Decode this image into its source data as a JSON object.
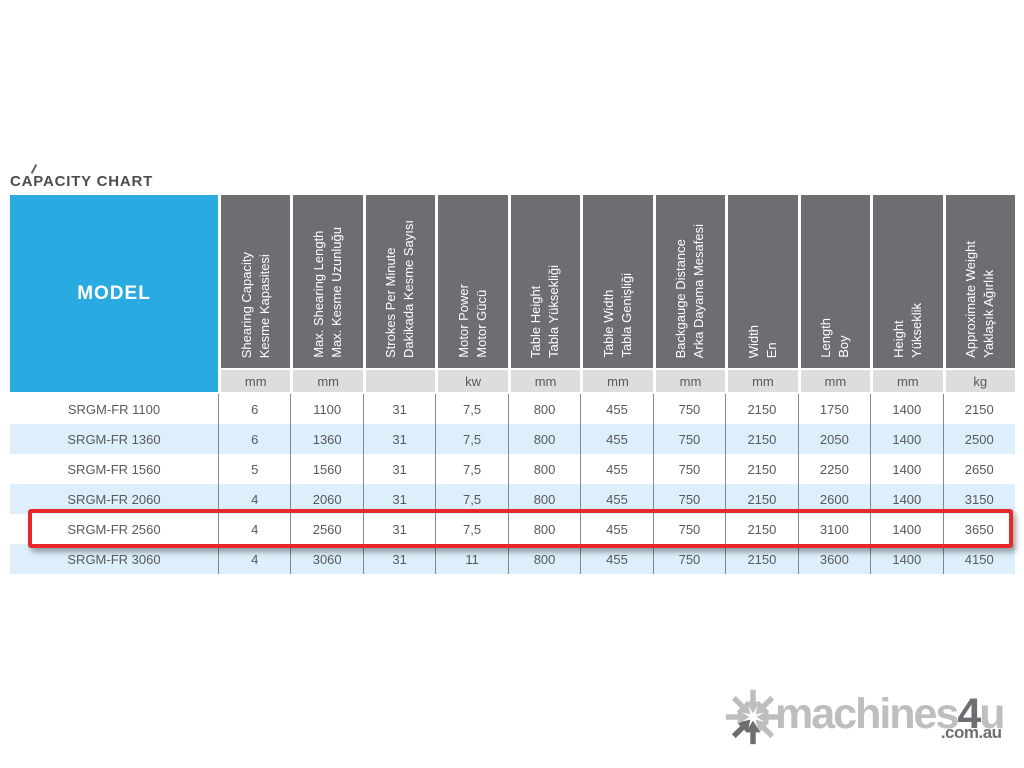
{
  "page": {
    "title": "CAPACITY CHART"
  },
  "chart_data": {
    "type": "table",
    "title": "CAPACITY CHART",
    "model_column_header": "MODEL",
    "columns": [
      {
        "en": "Shearing Capacity",
        "tr": "Kesme Kapasitesi",
        "unit": "mm"
      },
      {
        "en": "Max. Shearing Length",
        "tr": "Max. Kesme Uzunluğu",
        "unit": "mm"
      },
      {
        "en": "Strokes Per Minute",
        "tr": "Dakikada Kesme Sayısı",
        "unit": ""
      },
      {
        "en": "Motor Power",
        "tr": "Motor Gücü",
        "unit": "kw"
      },
      {
        "en": "Table Height",
        "tr": "Tabla Yüksekliği",
        "unit": "mm"
      },
      {
        "en": "Table Width",
        "tr": "Tabla Genişliği",
        "unit": "mm"
      },
      {
        "en": "Backgauge Distance",
        "tr": "Arka Dayama Mesafesi",
        "unit": "mm"
      },
      {
        "en": "Width",
        "tr": "En",
        "unit": "mm"
      },
      {
        "en": "Length",
        "tr": "Boy",
        "unit": "mm"
      },
      {
        "en": "Height",
        "tr": "Yükseklik",
        "unit": "mm"
      },
      {
        "en": "Approximate Weight",
        "tr": "Yaklaşık Ağırlık",
        "unit": "kg"
      }
    ],
    "rows": [
      {
        "model": "SRGM-FR 1100",
        "values": [
          "6",
          "1100",
          "31",
          "7,5",
          "800",
          "455",
          "750",
          "2150",
          "1750",
          "1400",
          "2150"
        ]
      },
      {
        "model": "SRGM-FR 1360",
        "values": [
          "6",
          "1360",
          "31",
          "7,5",
          "800",
          "455",
          "750",
          "2150",
          "2050",
          "1400",
          "2500"
        ]
      },
      {
        "model": "SRGM-FR 1560",
        "values": [
          "5",
          "1560",
          "31",
          "7,5",
          "800",
          "455",
          "750",
          "2150",
          "2250",
          "1400",
          "2650"
        ]
      },
      {
        "model": "SRGM-FR 2060",
        "values": [
          "4",
          "2060",
          "31",
          "7,5",
          "800",
          "455",
          "750",
          "2150",
          "2600",
          "1400",
          "3150"
        ]
      },
      {
        "model": "SRGM-FR 2560",
        "values": [
          "4",
          "2560",
          "31",
          "7,5",
          "800",
          "455",
          "750",
          "2150",
          "3100",
          "1400",
          "3650"
        ]
      },
      {
        "model": "SRGM-FR 3060",
        "values": [
          "4",
          "3060",
          "31",
          "11",
          "800",
          "455",
          "750",
          "2150",
          "3600",
          "1400",
          "4150"
        ]
      }
    ],
    "highlighted_row_index": 4,
    "highlighted_row_model": "SRGM-FR 2560"
  },
  "logo": {
    "brand_light": "machines",
    "brand_accent": "4",
    "brand_tail": "u",
    "domain": ".com.au",
    "icon": "snowflake-arrows-icon"
  },
  "colors": {
    "model_cell_blue": "#29ABE2",
    "header_gray": "#6D6E71",
    "units_row_bg": "#DCDDDE",
    "alt_row_blue": "#DCEFFA",
    "table_text": "#58595B",
    "divider_gray": "#85878A",
    "highlight_red": "#E8272D",
    "title_text": "#4D4D4F",
    "logo_light_gray": "#BCBEC0",
    "logo_dark_gray": "#6D6E71"
  }
}
